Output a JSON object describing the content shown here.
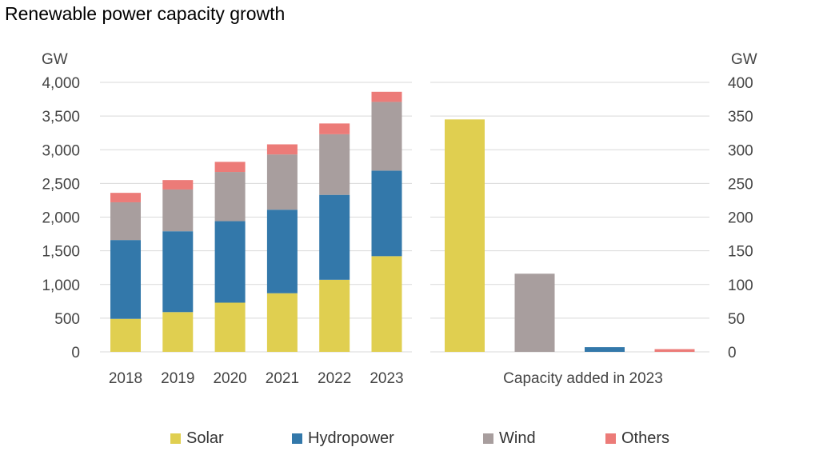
{
  "title": "Renewable power capacity growth",
  "colors": {
    "Solar": "#e0cf50",
    "Hydropower": "#3378aa",
    "Wind": "#a89e9e",
    "Others": "#ec7b78"
  },
  "chart_data": [
    {
      "type": "bar",
      "stacked": true,
      "ylabel": "GW",
      "ylim": [
        0,
        4000
      ],
      "yticks": [
        "0",
        "500",
        "1,000",
        "1,500",
        "2,000",
        "2,500",
        "3,000",
        "3,500",
        "4,000"
      ],
      "categories": [
        "2018",
        "2019",
        "2020",
        "2021",
        "2022",
        "2023"
      ],
      "series": [
        {
          "name": "Solar",
          "values": [
            490,
            590,
            730,
            870,
            1070,
            1420
          ]
        },
        {
          "name": "Hydropower",
          "values": [
            1170,
            1200,
            1210,
            1240,
            1260,
            1270
          ]
        },
        {
          "name": "Wind",
          "values": [
            560,
            620,
            730,
            820,
            900,
            1020
          ]
        },
        {
          "name": "Others",
          "values": [
            140,
            140,
            150,
            150,
            160,
            150
          ]
        }
      ],
      "grid": true
    },
    {
      "type": "bar",
      "ylabel": "GW",
      "ylim": [
        0,
        400
      ],
      "yticks": [
        "0",
        "50",
        "100",
        "150",
        "200",
        "250",
        "300",
        "350",
        "400"
      ],
      "xlabel": "Capacity added in 2023",
      "categories": [
        "Solar",
        "Wind",
        "Hydropower",
        "Others"
      ],
      "values": [
        345,
        116,
        7,
        4
      ],
      "grid": true
    }
  ],
  "legend": [
    "Solar",
    "Hydropower",
    "Wind",
    "Others"
  ]
}
